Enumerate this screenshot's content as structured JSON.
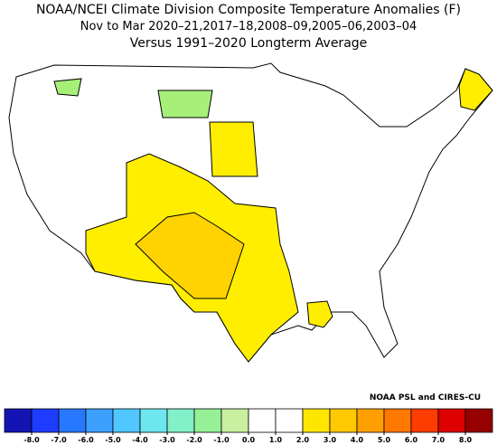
{
  "title": "NOAA/NCEI Climate Division Composite Temperature Anomalies (F)",
  "subtitle": "Nov to Mar  2020–21,2017–18,2008–09,2005–06,2003–04",
  "comparison": "Versus 1991–2020 Longterm Average",
  "credit": "NOAA PSL and CIRES-CU",
  "colorbar": {
    "colors": [
      "#1414b4",
      "#1e3cff",
      "#2878ff",
      "#3ca0ff",
      "#50c8ff",
      "#6ee6f0",
      "#82f0c8",
      "#96f096",
      "#c8f0a0",
      "#ffffff",
      "#ffffff",
      "#ffe600",
      "#ffc800",
      "#ffa000",
      "#ff7800",
      "#ff3c00",
      "#dc0000",
      "#960000"
    ],
    "ticks": [
      {
        "value": -8,
        "label": "-8.0"
      },
      {
        "value": -7,
        "label": "-7.0"
      },
      {
        "value": -6,
        "label": "-6.0"
      },
      {
        "value": -5,
        "label": "-5.0"
      },
      {
        "value": -4,
        "label": "-4.0"
      },
      {
        "value": -3,
        "label": "-3.0"
      },
      {
        "value": -2,
        "label": "-2.0"
      },
      {
        "value": -1,
        "label": "-1.0"
      },
      {
        "value": 0,
        "label": "0.0"
      },
      {
        "value": 1,
        "label": "1.0"
      },
      {
        "value": 2,
        "label": "2.0"
      },
      {
        "value": 3,
        "label": "3.0"
      },
      {
        "value": 4,
        "label": "4.0"
      },
      {
        "value": 5,
        "label": "5.0"
      },
      {
        "value": 6,
        "label": "6.0"
      },
      {
        "value": 7,
        "label": "7.0"
      },
      {
        "value": 8,
        "label": "8.0"
      }
    ]
  }
}
